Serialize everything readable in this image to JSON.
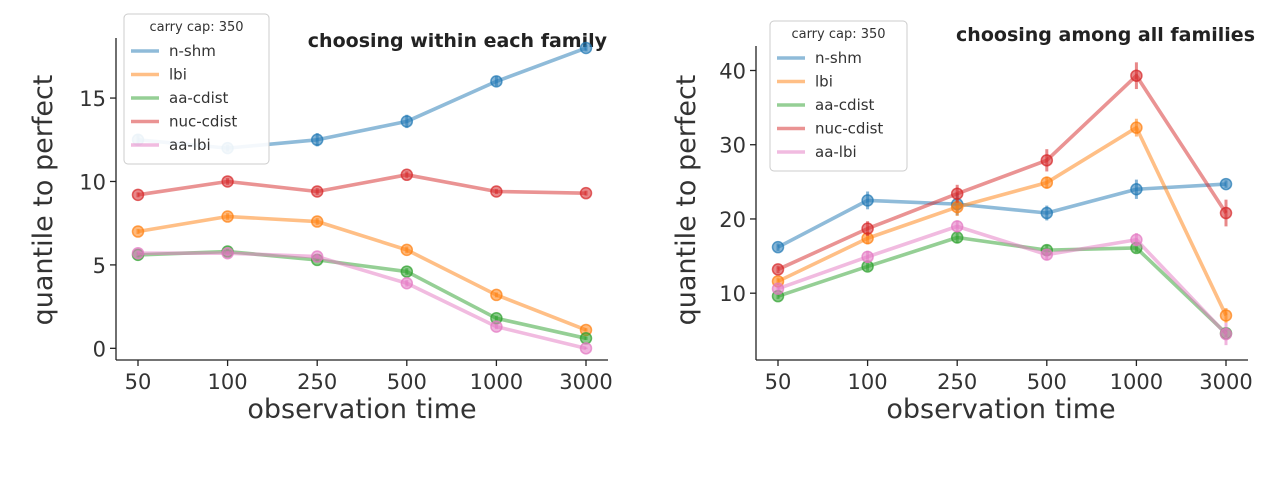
{
  "chart_data": [
    {
      "type": "line",
      "title": "choosing within each family",
      "xlabel": "observation time",
      "ylabel": "quantile to perfect",
      "categories": [
        "50",
        "100",
        "250",
        "500",
        "1000",
        "3000"
      ],
      "yticks": [
        0,
        5,
        10,
        15
      ],
      "ylim": [
        -0.7,
        18.6
      ],
      "legend_title": "carry cap: 350",
      "legend_position": "upper-left",
      "grid": false,
      "series": [
        {
          "name": "n-shm",
          "color": "#1f77b4",
          "values": [
            12.5,
            12.0,
            12.5,
            13.6,
            16.0,
            18.0
          ],
          "err": [
            0.3,
            0.2,
            0.4,
            0.4,
            0.3,
            0.2
          ]
        },
        {
          "name": "lbi",
          "color": "#ff7f0e",
          "values": [
            7.0,
            7.9,
            7.6,
            5.9,
            3.2,
            1.1
          ],
          "err": [
            0.15,
            0.2,
            0.2,
            0.2,
            0.15,
            0.1
          ]
        },
        {
          "name": "aa-cdist",
          "color": "#2ca02c",
          "values": [
            5.6,
            5.8,
            5.3,
            4.6,
            1.8,
            0.6
          ],
          "err": [
            0.15,
            0.15,
            0.15,
            0.2,
            0.15,
            0.1
          ]
        },
        {
          "name": "nuc-cdist",
          "color": "#d62728",
          "values": [
            9.2,
            10.0,
            9.4,
            10.4,
            9.4,
            9.3
          ],
          "err": [
            0.15,
            0.2,
            0.2,
            0.2,
            0.15,
            0.15
          ]
        },
        {
          "name": "aa-lbi",
          "color": "#e377c2",
          "values": [
            5.7,
            5.7,
            5.5,
            3.9,
            1.3,
            0.0
          ],
          "err": [
            0.15,
            0.15,
            0.15,
            0.2,
            0.15,
            0.05
          ]
        }
      ]
    },
    {
      "type": "line",
      "title": "choosing among all families",
      "xlabel": "observation time",
      "ylabel": "quantile to perfect",
      "categories": [
        "50",
        "100",
        "250",
        "500",
        "1000",
        "3000"
      ],
      "yticks": [
        10,
        20,
        30,
        40
      ],
      "ylim": [
        1.0,
        43.3
      ],
      "legend_title": "carry cap: 350",
      "legend_position": "upper-left",
      "grid": false,
      "series": [
        {
          "name": "n-shm",
          "color": "#1f77b4",
          "values": [
            16.2,
            22.5,
            22.0,
            20.8,
            24.0,
            24.7
          ],
          "err": [
            0.5,
            1.2,
            1.5,
            1.0,
            1.3,
            0.5
          ]
        },
        {
          "name": "lbi",
          "color": "#ff7f0e",
          "values": [
            11.6,
            17.4,
            21.6,
            24.9,
            32.3,
            7.0
          ],
          "err": [
            0.5,
            0.8,
            1.2,
            0.8,
            1.2,
            1.0
          ]
        },
        {
          "name": "aa-cdist",
          "color": "#2ca02c",
          "values": [
            9.6,
            13.6,
            17.5,
            15.8,
            16.1,
            4.6
          ],
          "err": [
            0.4,
            0.6,
            0.7,
            0.7,
            0.6,
            0.5
          ]
        },
        {
          "name": "nuc-cdist",
          "color": "#d62728",
          "values": [
            13.2,
            18.7,
            23.4,
            27.9,
            39.3,
            20.8
          ],
          "err": [
            0.5,
            1.0,
            1.2,
            1.5,
            1.8,
            1.8
          ]
        },
        {
          "name": "aa-lbi",
          "color": "#e377c2",
          "values": [
            10.6,
            14.9,
            19.0,
            15.2,
            17.2,
            4.5
          ],
          "err": [
            0.5,
            0.8,
            0.8,
            0.7,
            0.9,
            1.5
          ]
        }
      ]
    }
  ]
}
